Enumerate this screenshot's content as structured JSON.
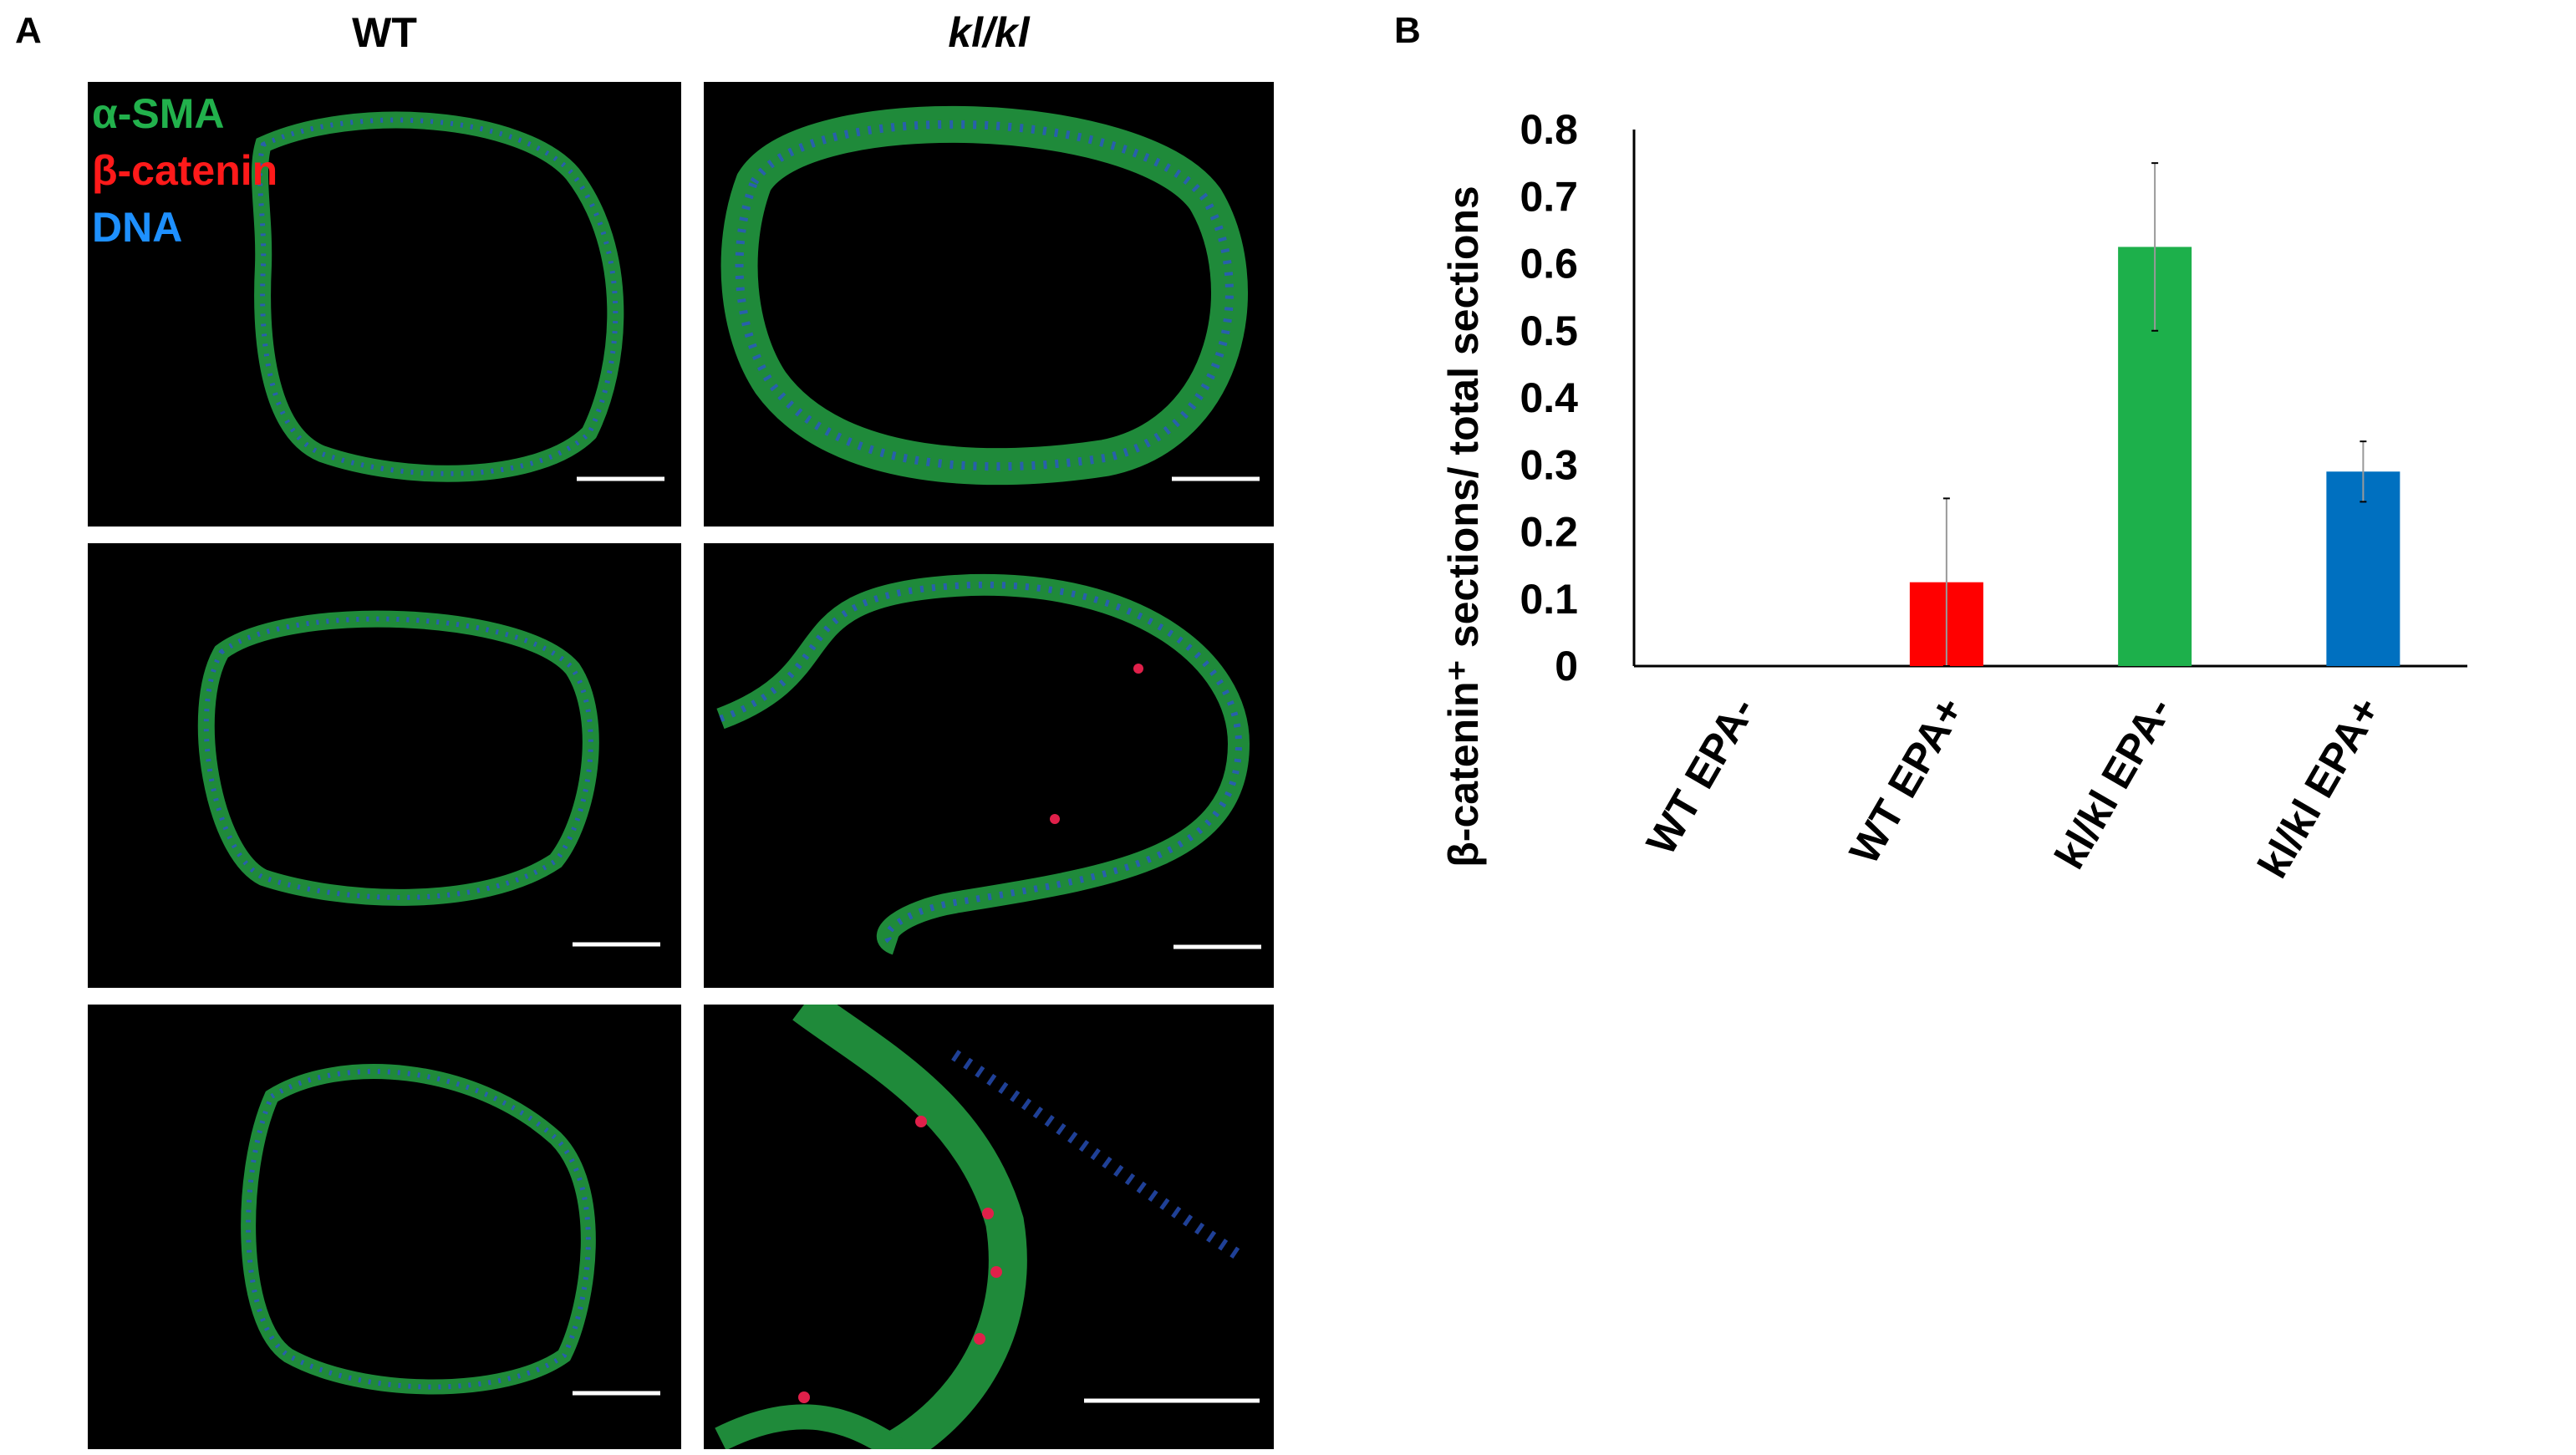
{
  "panel_a": {
    "letter": "A",
    "columns": [
      "WT",
      "kl/kl"
    ],
    "stain_legend": [
      {
        "label": "α-SMA",
        "color": "#22b14c"
      },
      {
        "label": "β-catenin",
        "color": "#ff1a1a"
      },
      {
        "label": "DNA",
        "color": "#1e90ff"
      }
    ]
  },
  "panel_b": {
    "letter": "B"
  },
  "chart_data": {
    "type": "bar",
    "categories": [
      "WT EPA-",
      "WT EPA+",
      "kl/kl EPA-",
      "kl/kl EPA+"
    ],
    "values": [
      0,
      0.125,
      0.625,
      0.29
    ],
    "errors": [
      0,
      0.125,
      0.125,
      0.045
    ],
    "colors": [
      "#ff0000",
      "#ff0000",
      "#1db04b",
      "#0070c0"
    ],
    "ylabel": "β-catenin⁺ sections/ total sections",
    "ylim": [
      0,
      0.8
    ],
    "yticks": [
      "0",
      "0.1",
      "0.2",
      "0.3",
      "0.4",
      "0.5",
      "0.6",
      "0.7",
      "0.8"
    ],
    "grid": false
  }
}
